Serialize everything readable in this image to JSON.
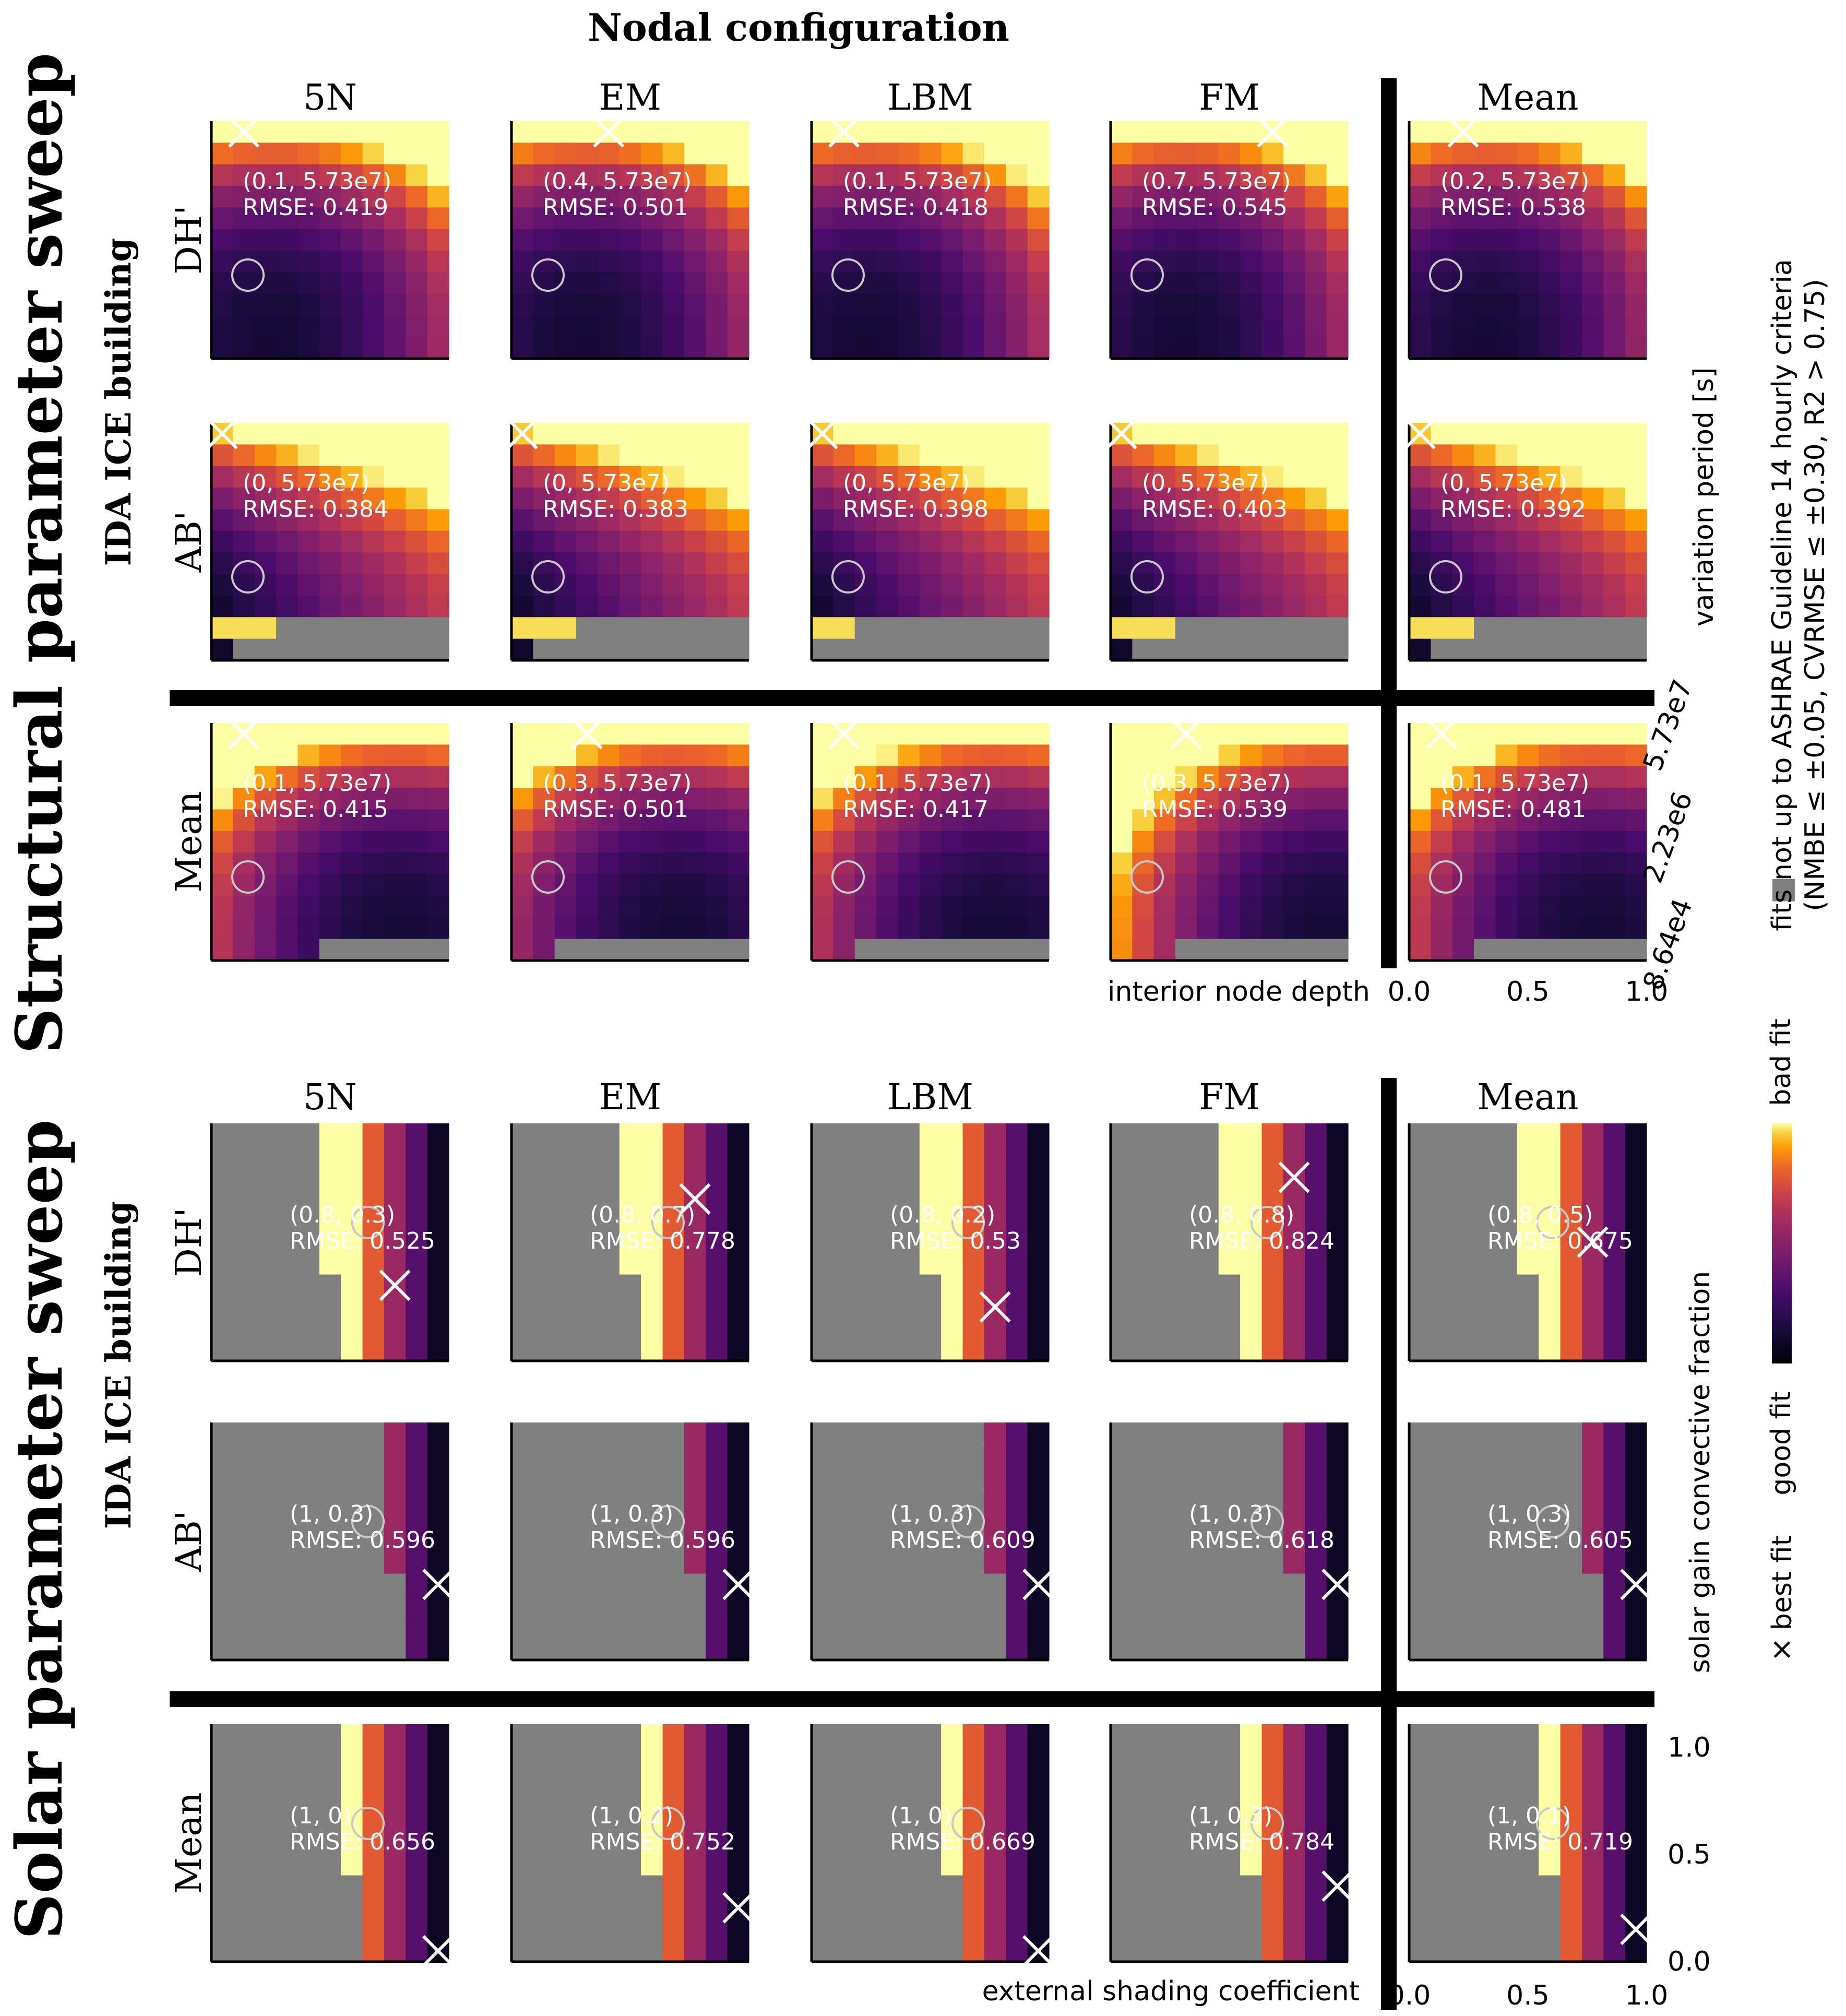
{
  "figure_title": "Nodal configuration",
  "columns": [
    "5N",
    "EM",
    "LBM",
    "FM",
    "Mean"
  ],
  "colors": {
    "good": "#000004",
    "bad": "#fcffa4",
    "not_up_to_criteria": "#808080",
    "divider": "#000000",
    "circle": "#bdbdbd"
  },
  "colorbar": {
    "bad_label": "bad fit",
    "good_label": "good fit",
    "best_fit_label": "best fit",
    "best_fit_symbol": "×",
    "gray_symbol": "■",
    "gray_label_line1": "fits not up to ASHRAE Guideline 14 hourly criteria",
    "gray_label_line2": "(NMBE ≤ ±0.05, CVRMSE ≤ ±0.30, R2 > 0.75)"
  },
  "chart_data": [
    {
      "type": "heatmap",
      "section_title": "Structural parameter sweep",
      "building_label": "IDA ICE building",
      "rows": [
        "DH'",
        "AB'",
        "Mean"
      ],
      "xlabel": "interior node depth",
      "ylabel": "variation period [s]",
      "xticks": [
        "0.0",
        "0.5",
        "1.0"
      ],
      "yticks": [
        "8.64e4",
        "2.23e6",
        "5.73e7"
      ],
      "x_range": [
        0,
        1
      ],
      "grid_size": [
        11,
        11
      ],
      "annotations": [
        [
          {
            "best": [
              0.1,
              57300000.0
            ],
            "label": "(0.1, 5.73e7)",
            "rmse": "RMSE: 0.419"
          },
          {
            "best": [
              0.4,
              57300000.0
            ],
            "label": "(0.4, 5.73e7)",
            "rmse": "RMSE: 0.501"
          },
          {
            "best": [
              0.1,
              57300000.0
            ],
            "label": "(0.1, 5.73e7)",
            "rmse": "RMSE: 0.418"
          },
          {
            "best": [
              0.7,
              57300000.0
            ],
            "label": "(0.7, 5.73e7)",
            "rmse": "RMSE: 0.545"
          },
          {
            "best": [
              0.2,
              57300000.0
            ],
            "label": "(0.2, 5.73e7)",
            "rmse": "RMSE: 0.538"
          }
        ],
        [
          {
            "best": [
              0,
              57300000.0
            ],
            "label": "(0, 5.73e7)",
            "rmse": "RMSE: 0.384"
          },
          {
            "best": [
              0,
              57300000.0
            ],
            "label": "(0, 5.73e7)",
            "rmse": "RMSE: 0.383"
          },
          {
            "best": [
              0,
              57300000.0
            ],
            "label": "(0, 5.73e7)",
            "rmse": "RMSE: 0.398"
          },
          {
            "best": [
              0,
              57300000.0
            ],
            "label": "(0, 5.73e7)",
            "rmse": "RMSE: 0.403"
          },
          {
            "best": [
              0,
              57300000.0
            ],
            "label": "(0, 5.73e7)",
            "rmse": "RMSE: 0.392"
          }
        ],
        [
          {
            "best": [
              0.1,
              57300000.0
            ],
            "label": "(0.1, 5.73e7)",
            "rmse": "RMSE: 0.415"
          },
          {
            "best": [
              0.3,
              57300000.0
            ],
            "label": "(0.3, 5.73e7)",
            "rmse": "RMSE: 0.501"
          },
          {
            "best": [
              0.1,
              57300000.0
            ],
            "label": "(0.1, 5.73e7)",
            "rmse": "RMSE: 0.417"
          },
          {
            "best": [
              0.3,
              57300000.0
            ],
            "label": "(0.3, 5.73e7)",
            "rmse": "RMSE: 0.539"
          },
          {
            "best": [
              0.1,
              57300000.0
            ],
            "label": "(0.1, 5.73e7)",
            "rmse": "RMSE: 0.481"
          }
        ]
      ]
    },
    {
      "type": "heatmap",
      "section_title": "Solar parameter sweep",
      "building_label": "IDA ICE building",
      "rows": [
        "DH'",
        "AB'",
        "Mean"
      ],
      "xlabel": "external shading coefficient",
      "ylabel": "solar gain convective fraction",
      "xticks": [
        "0.0",
        "0.5",
        "1.0"
      ],
      "yticks": [
        "0.0",
        "0.5",
        "1.0"
      ],
      "x_range": [
        0,
        1
      ],
      "y_range": [
        0,
        1
      ],
      "grid_size": [
        11,
        11
      ],
      "annotations": [
        [
          {
            "best": [
              0.8,
              0.3
            ],
            "label": "(0.8, 0.3)",
            "rmse": "RMSE: 0.525"
          },
          {
            "best": [
              0.8,
              0.7
            ],
            "label": "(0.8, 0.7)",
            "rmse": "RMSE: 0.778"
          },
          {
            "best": [
              0.8,
              0.2
            ],
            "label": "(0.8, 0.2)",
            "rmse": "RMSE: 0.53"
          },
          {
            "best": [
              0.8,
              0.8
            ],
            "label": "(0.8, 0.8)",
            "rmse": "RMSE: 0.824"
          },
          {
            "best": [
              0.8,
              0.5
            ],
            "label": "(0.8, 0.5)",
            "rmse": "RMSE: 0.675"
          }
        ],
        [
          {
            "best": [
              1,
              0.3
            ],
            "label": "(1, 0.3)",
            "rmse": "RMSE: 0.596"
          },
          {
            "best": [
              1,
              0.3
            ],
            "label": "(1, 0.3)",
            "rmse": "RMSE: 0.596"
          },
          {
            "best": [
              1,
              0.3
            ],
            "label": "(1, 0.3)",
            "rmse": "RMSE: 0.609"
          },
          {
            "best": [
              1,
              0.3
            ],
            "label": "(1, 0.3)",
            "rmse": "RMSE: 0.618"
          },
          {
            "best": [
              1,
              0.3
            ],
            "label": "(1, 0.3)",
            "rmse": "RMSE: 0.605"
          }
        ],
        [
          {
            "best": [
              1,
              0
            ],
            "label": "(1, 0)",
            "rmse": "RMSE: 0.656"
          },
          {
            "best": [
              1,
              0.2
            ],
            "label": "(1, 0.2)",
            "rmse": "RMSE: 0.752"
          },
          {
            "best": [
              1,
              0
            ],
            "label": "(1, 0)",
            "rmse": "RMSE: 0.669"
          },
          {
            "best": [
              1,
              0.3
            ],
            "label": "(1, 0.3)",
            "rmse": "RMSE: 0.784"
          },
          {
            "best": [
              1,
              0.1
            ],
            "label": "(1, 0.1)",
            "rmse": "RMSE: 0.719"
          }
        ]
      ]
    }
  ]
}
